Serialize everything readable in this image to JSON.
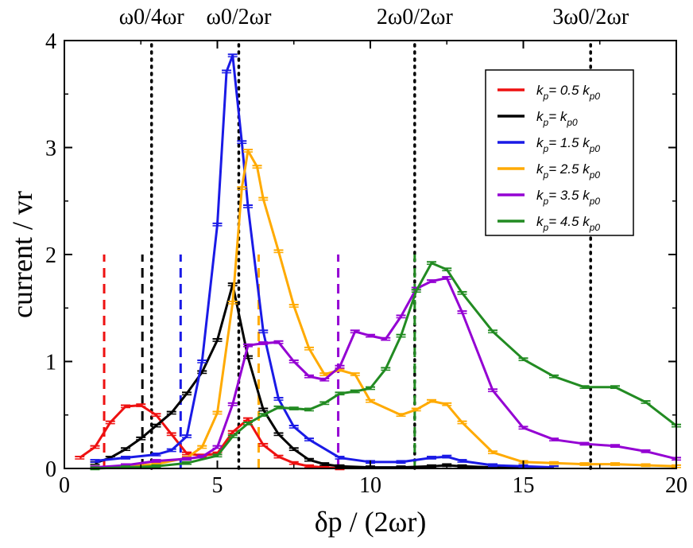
{
  "chart_data": {
    "type": "line",
    "xlabel": "δp / (2ωr)",
    "ylabel": "current / vr",
    "xlim": [
      0,
      20
    ],
    "ylim": [
      0,
      4
    ],
    "xticks": [
      "0",
      "5",
      "10",
      "15",
      "20"
    ],
    "yticks": [
      "0",
      "1",
      "2",
      "3",
      "4"
    ],
    "xtick_values": [
      0,
      5,
      10,
      15,
      20
    ],
    "ytick_values": [
      0,
      1,
      2,
      3,
      4
    ],
    "top_labels": [
      {
        "text": "ω0/4ωr",
        "x": 2.85
      },
      {
        "text": "ω0/2ωr",
        "x": 5.7
      },
      {
        "text": "2ω0/2ωr",
        "x": 11.45
      },
      {
        "text": "3ω0/2ωr",
        "x": 17.2
      }
    ],
    "reference_lines": [
      {
        "x": 2.85,
        "color": "#000000",
        "style": "dotted",
        "ymax": 4
      },
      {
        "x": 5.7,
        "color": "#000000",
        "style": "dotted",
        "ymax": 4
      },
      {
        "x": 11.45,
        "color": "#000000",
        "style": "dotted",
        "ymax": 4
      },
      {
        "x": 17.2,
        "color": "#000000",
        "style": "dotted",
        "ymax": 4
      },
      {
        "x": 1.3,
        "color": "#ee1111",
        "style": "dashed",
        "ymax": 2
      },
      {
        "x": 2.55,
        "color": "#000000",
        "style": "dashed",
        "ymax": 2
      },
      {
        "x": 3.8,
        "color": "#1a1ae6",
        "style": "dashed",
        "ymax": 2
      },
      {
        "x": 6.35,
        "color": "#ffaa00",
        "style": "dashed",
        "ymax": 2
      },
      {
        "x": 8.95,
        "color": "#9400d3",
        "style": "dashed",
        "ymax": 2
      },
      {
        "x": 11.45,
        "color": "#228b22",
        "style": "dashed",
        "ymax": 2
      }
    ],
    "series": [
      {
        "name": "kp= 0.5 kp0",
        "label_main": "k",
        "label_sub": "p",
        "label_rest": "= 0.5 k",
        "label_sub2": "p0",
        "color": "#ee1111",
        "x": [
          0.5,
          1.0,
          1.5,
          2.0,
          2.5,
          3.0,
          3.5,
          4.0,
          4.5,
          5.0,
          5.5,
          6.0,
          6.5,
          7.0,
          7.5,
          8.0,
          8.5,
          9.0
        ],
        "y": [
          0.1,
          0.2,
          0.43,
          0.58,
          0.59,
          0.5,
          0.32,
          0.14,
          0.12,
          0.14,
          0.34,
          0.46,
          0.22,
          0.11,
          0.05,
          0.02,
          0.01,
          0.0
        ]
      },
      {
        "name": "kp= kp0",
        "label_main": "k",
        "label_sub": "p",
        "label_rest": "= k",
        "label_sub2": "p0",
        "color": "#000000",
        "x": [
          1.0,
          1.5,
          2.0,
          2.5,
          3.0,
          3.5,
          4.0,
          4.5,
          5.0,
          5.5,
          6.0,
          6.5,
          7.0,
          7.5,
          8.0,
          8.5,
          9.0,
          10.0,
          11.0,
          12.0,
          12.5,
          13.0,
          14.0,
          15.0,
          16.0
        ],
        "y": [
          0.05,
          0.1,
          0.18,
          0.28,
          0.4,
          0.52,
          0.7,
          0.9,
          1.2,
          1.72,
          1.04,
          0.55,
          0.32,
          0.18,
          0.08,
          0.04,
          0.02,
          0.01,
          0.01,
          0.02,
          0.03,
          0.02,
          0.01,
          0.01,
          0.01
        ]
      },
      {
        "name": "kp= 1.5 kp0",
        "label_main": "k",
        "label_sub": "p",
        "label_rest": "= 1.5 k",
        "label_sub2": "p0",
        "color": "#1a1ae6",
        "x": [
          1.0,
          2.0,
          3.0,
          3.5,
          4.0,
          4.5,
          5.0,
          5.3,
          5.5,
          5.8,
          6.0,
          6.5,
          7.0,
          7.5,
          8.0,
          9.0,
          10.0,
          11.0,
          12.0,
          12.5,
          13.0,
          14.0,
          15.0,
          16.0
        ],
        "y": [
          0.07,
          0.1,
          0.13,
          0.17,
          0.3,
          1.0,
          2.28,
          3.71,
          3.86,
          3.05,
          2.45,
          1.28,
          0.65,
          0.39,
          0.27,
          0.1,
          0.06,
          0.06,
          0.1,
          0.11,
          0.07,
          0.03,
          0.02,
          0.01
        ]
      },
      {
        "name": "kp= 2.5 kp0",
        "label_main": "k",
        "label_sub": "p",
        "label_rest": "= 2.5 k",
        "label_sub2": "p0",
        "color": "#ffaa00",
        "x": [
          1.0,
          2.0,
          3.0,
          4.0,
          4.5,
          5.0,
          5.5,
          5.8,
          6.0,
          6.3,
          6.5,
          7.0,
          7.5,
          8.0,
          8.5,
          9.0,
          9.5,
          10.0,
          11.0,
          11.5,
          12.0,
          12.5,
          13.0,
          14.0,
          15.0,
          16.0,
          17.0,
          18.0,
          19.0,
          20.0
        ],
        "y": [
          0.01,
          0.02,
          0.04,
          0.1,
          0.2,
          0.52,
          1.55,
          2.62,
          2.97,
          2.82,
          2.52,
          2.03,
          1.52,
          1.12,
          0.88,
          0.92,
          0.88,
          0.63,
          0.5,
          0.55,
          0.63,
          0.6,
          0.43,
          0.15,
          0.06,
          0.05,
          0.04,
          0.04,
          0.03,
          0.02
        ]
      },
      {
        "name": "kp= 3.5 kp0",
        "label_main": "k",
        "label_sub": "p",
        "label_rest": "= 3.5 k",
        "label_sub2": "p0",
        "color": "#9400d3",
        "x": [
          1.0,
          2.0,
          3.0,
          4.0,
          4.5,
          5.0,
          5.5,
          6.0,
          6.5,
          7.0,
          7.5,
          8.0,
          8.5,
          9.0,
          9.5,
          10.0,
          10.5,
          11.0,
          11.5,
          12.0,
          12.5,
          13.0,
          14.0,
          15.0,
          16.0,
          17.0,
          18.0,
          19.0,
          20.0
        ],
        "y": [
          0.01,
          0.03,
          0.07,
          0.09,
          0.11,
          0.2,
          0.6,
          1.15,
          1.17,
          1.18,
          1.0,
          0.86,
          0.83,
          0.95,
          1.28,
          1.24,
          1.21,
          1.42,
          1.68,
          1.75,
          1.78,
          1.46,
          0.73,
          0.38,
          0.27,
          0.23,
          0.21,
          0.16,
          0.09
        ]
      },
      {
        "name": "kp= 4.5 kp0",
        "label_main": "k",
        "label_sub": "p",
        "label_rest": "= 4.5 k",
        "label_sub2": "p0",
        "color": "#228b22",
        "x": [
          1.0,
          2.0,
          3.0,
          4.0,
          5.0,
          5.5,
          6.0,
          6.5,
          7.0,
          7.5,
          8.0,
          8.5,
          9.0,
          9.5,
          10.0,
          10.5,
          11.0,
          11.5,
          12.0,
          12.5,
          13.0,
          14.0,
          15.0,
          16.0,
          17.0,
          18.0,
          19.0,
          20.0
        ],
        "y": [
          0.0,
          0.01,
          0.02,
          0.05,
          0.12,
          0.3,
          0.42,
          0.5,
          0.57,
          0.56,
          0.55,
          0.61,
          0.7,
          0.72,
          0.75,
          0.93,
          1.24,
          1.66,
          1.92,
          1.86,
          1.64,
          1.28,
          1.02,
          0.86,
          0.76,
          0.76,
          0.62,
          0.4
        ]
      }
    ]
  }
}
